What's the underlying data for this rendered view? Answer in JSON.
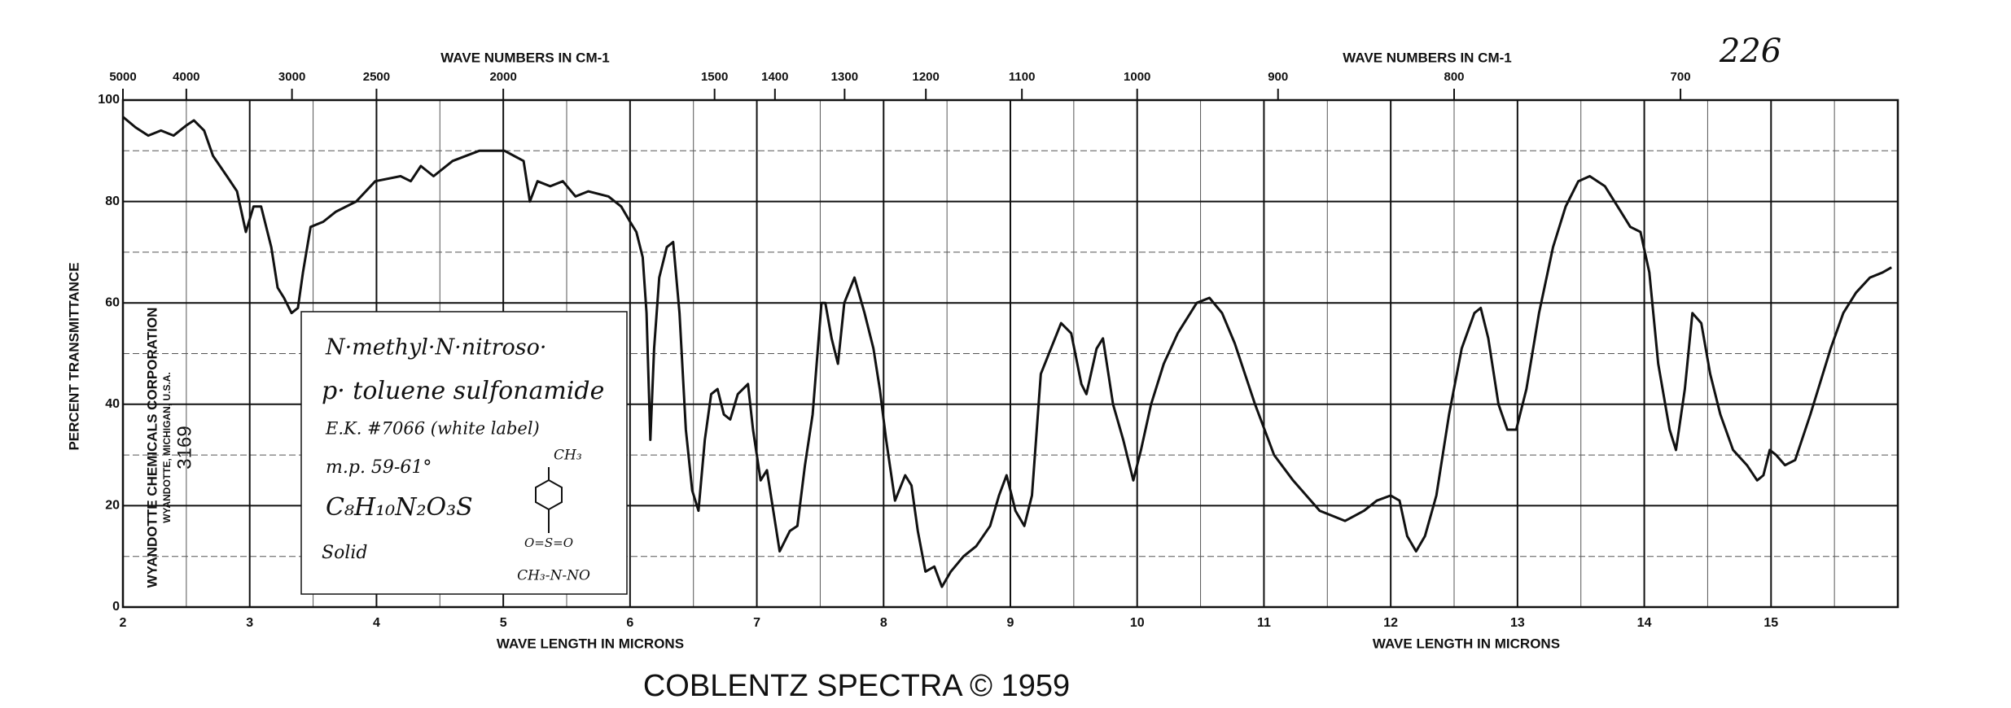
{
  "chart_data": {
    "type": "line",
    "page_number": "226",
    "top_axis_label": "WAVE NUMBERS IN CM-1",
    "bottom_axis_label": "WAVE LENGTH IN MICRONS",
    "ylabel": "PERCENT TRANSMITTANCE",
    "footer": "COBLENTZ SPECTRA © 1959",
    "publisher": [
      "WYANDOTTE CHEMICALS CORPORATION",
      "WYANDOTTE, MICHIGAN, U.S.A.",
      "3169"
    ],
    "annotation": {
      "lines": [
        "N·methyl·N·nitroso·",
        "p· toluene sulfonamide",
        "E.K. #7066 (white label)",
        "m.p. 59-61°",
        "C₈H₁₀N₂O₃S",
        "Solid"
      ],
      "structure": [
        "CH₃",
        "O=S=O",
        "CH₃-N-NO"
      ]
    },
    "xlim": [
      2,
      16
    ],
    "ylim": [
      0,
      100
    ],
    "xticks": [
      2,
      3,
      4,
      5,
      6,
      7,
      8,
      9,
      10,
      11,
      12,
      13,
      14,
      15
    ],
    "xminor_ticks": [
      2.5,
      3.5,
      4.5,
      5.5,
      6.5,
      7.5,
      8.5,
      9.5,
      10.5,
      11.5,
      12.5,
      13.5,
      14.5,
      15.5
    ],
    "yticks": [
      0,
      20,
      40,
      60,
      80,
      100
    ],
    "yminor_ticks": [
      10,
      30,
      50,
      70,
      90
    ],
    "x2ticks": [
      5000,
      4000,
      3000,
      2500,
      2000,
      1500,
      1400,
      1300,
      1200,
      1100,
      1000,
      900,
      800,
      700
    ],
    "grid": true,
    "series": [
      {
        "color": "#111111",
        "x": [
          2.0,
          2.1,
          2.2,
          2.3,
          2.4,
          2.5,
          2.56,
          2.64,
          2.71,
          2.82,
          2.9,
          2.97,
          3.03,
          3.09,
          3.17,
          3.22,
          3.27,
          3.33,
          3.38,
          3.42,
          3.48,
          3.58,
          3.68,
          3.84,
          3.99,
          4.19,
          4.27,
          4.35,
          4.45,
          4.6,
          4.81,
          5.01,
          5.16,
          5.21,
          5.27,
          5.37,
          5.47,
          5.57,
          5.67,
          5.83,
          5.93,
          6.0,
          6.05,
          6.1,
          6.13,
          6.16,
          6.19,
          6.23,
          6.29,
          6.34,
          6.39,
          6.44,
          6.49,
          6.54,
          6.59,
          6.64,
          6.69,
          6.74,
          6.79,
          6.85,
          6.93,
          6.97,
          7.03,
          7.08,
          7.13,
          7.18,
          7.26,
          7.32,
          7.38,
          7.44,
          7.51,
          7.54,
          7.59,
          7.64,
          7.69,
          7.77,
          7.85,
          7.92,
          7.97,
          8.02,
          8.09,
          8.17,
          8.22,
          8.27,
          8.33,
          8.4,
          8.46,
          8.53,
          8.63,
          8.73,
          8.84,
          8.91,
          8.97,
          9.01,
          9.04,
          9.11,
          9.17,
          9.24,
          9.32,
          9.4,
          9.48,
          9.56,
          9.6,
          9.68,
          9.73,
          9.81,
          9.89,
          9.97,
          10.03,
          10.11,
          10.21,
          10.32,
          10.47,
          10.57,
          10.67,
          10.77,
          10.93,
          11.08,
          11.23,
          11.44,
          11.64,
          11.79,
          11.89,
          12.0,
          12.07,
          12.13,
          12.2,
          12.27,
          12.36,
          12.46,
          12.56,
          12.66,
          12.71,
          12.77,
          12.85,
          12.92,
          12.99,
          13.07,
          13.17,
          13.28,
          13.38,
          13.48,
          13.57,
          13.69,
          13.79,
          13.89,
          13.97,
          14.04,
          14.11,
          14.2,
          14.25,
          14.32,
          14.38,
          14.45,
          14.52,
          14.6,
          14.7,
          14.81,
          14.89,
          14.94,
          14.99,
          15.04,
          15.11,
          15.19,
          15.31,
          15.47,
          15.57,
          15.67,
          15.78,
          15.88,
          15.95
        ],
        "values": [
          96.7,
          94.6,
          93,
          94,
          93,
          95,
          96,
          94,
          89,
          85,
          82,
          74,
          79,
          79,
          71,
          63,
          61,
          58,
          59,
          66,
          75,
          76,
          78,
          80,
          84,
          85,
          84,
          87,
          85,
          88,
          90,
          90,
          88,
          80,
          84,
          83,
          84,
          81,
          82,
          81,
          79,
          76,
          74,
          69,
          58,
          33,
          51,
          65,
          71,
          72,
          58,
          35,
          23,
          19,
          33,
          42,
          43,
          38,
          37,
          42,
          44,
          35,
          25,
          27,
          19,
          11,
          15,
          16,
          28,
          38,
          60,
          60,
          53,
          48,
          60,
          65,
          58,
          51,
          43,
          33,
          21,
          26,
          24,
          15,
          7,
          8,
          4,
          7,
          10,
          12,
          16,
          22,
          26,
          22,
          19,
          16,
          22,
          46,
          51,
          56,
          54,
          44,
          42,
          51,
          53,
          40,
          33,
          25,
          31,
          40,
          48,
          54,
          60,
          61,
          58,
          52,
          40,
          30,
          25,
          19,
          17,
          19,
          21,
          22,
          21,
          14,
          11,
          14,
          22,
          38,
          51,
          58,
          59,
          53,
          40,
          35,
          35,
          43,
          58,
          71,
          79,
          84,
          85,
          83,
          79,
          75,
          74,
          66,
          48,
          35,
          31,
          43,
          58,
          56,
          46,
          38,
          31,
          28,
          25,
          26,
          31,
          30,
          28,
          29,
          38,
          51,
          58,
          62,
          65,
          66,
          67
        ]
      }
    ]
  }
}
